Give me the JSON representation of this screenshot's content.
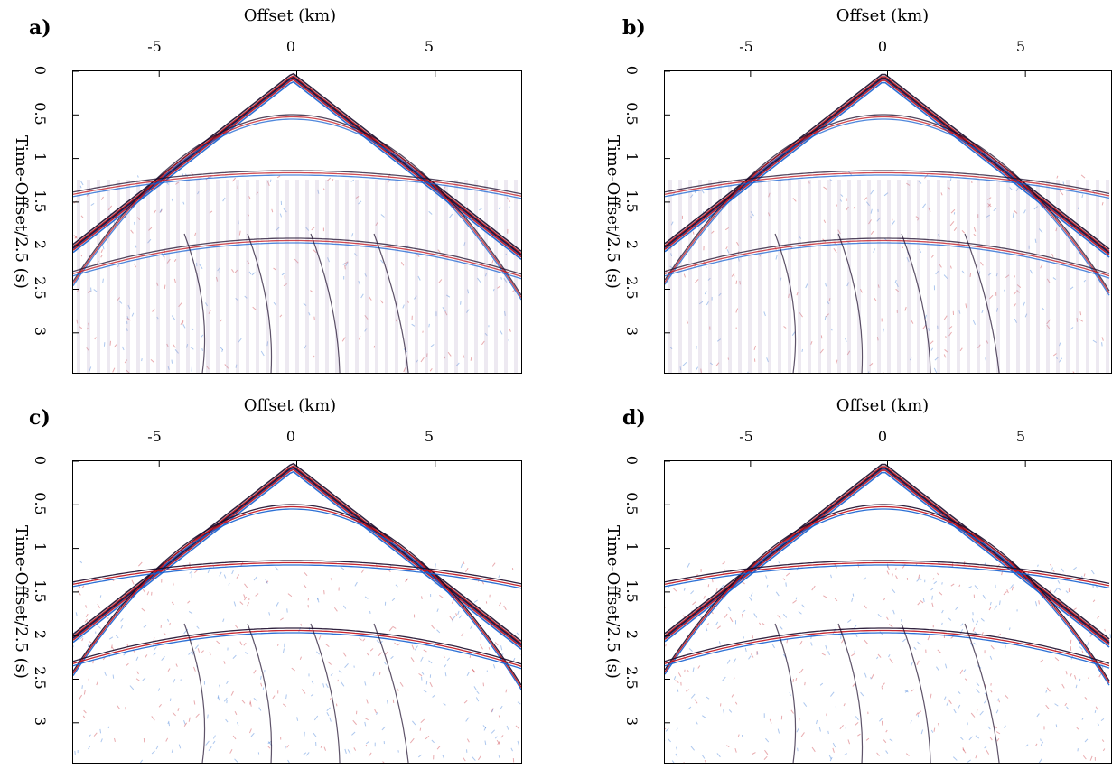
{
  "panels": [
    {
      "letter": "a)",
      "xlabel": "Offset (km)",
      "ylabel": "Time-Offset/2.5 (s)",
      "xticks": [
        "-5",
        "0",
        "5"
      ],
      "yticks": [
        "0",
        "0.5",
        "1",
        "1.5",
        "2",
        "2.5",
        "3"
      ],
      "style": "decimated"
    },
    {
      "letter": "b)",
      "xlabel": "Offset (km)",
      "ylabel": "Time-Offset/2.5 (s)",
      "xticks": [
        "-5",
        "0",
        "5"
      ],
      "yticks": [
        "0",
        "0.5",
        "1",
        "1.5",
        "2",
        "2.5",
        "3"
      ],
      "style": "decimated"
    },
    {
      "letter": "c)",
      "xlabel": "Offset (km)",
      "ylabel": "Time-Offset/2.5 (s)",
      "xticks": [
        "-5",
        "0",
        "5"
      ],
      "yticks": [
        "0",
        "0.5",
        "1",
        "1.5",
        "2",
        "2.5",
        "3"
      ],
      "style": "dense"
    },
    {
      "letter": "d)",
      "xlabel": "Offset (km)",
      "ylabel": "Time-Offset/2.5 (s)",
      "xticks": [
        "-5",
        "0",
        "5"
      ],
      "yticks": [
        "0",
        "0.5",
        "1",
        "1.5",
        "2",
        "2.5",
        "3"
      ],
      "style": "dense"
    }
  ],
  "axes": {
    "x_range_km": [
      -8.2,
      8.2
    ],
    "y_range_s": [
      0,
      3.5
    ]
  },
  "colors": {
    "positive": "#c0101a",
    "negative": "#1560d0",
    "dark": "#1a0a2a"
  }
}
